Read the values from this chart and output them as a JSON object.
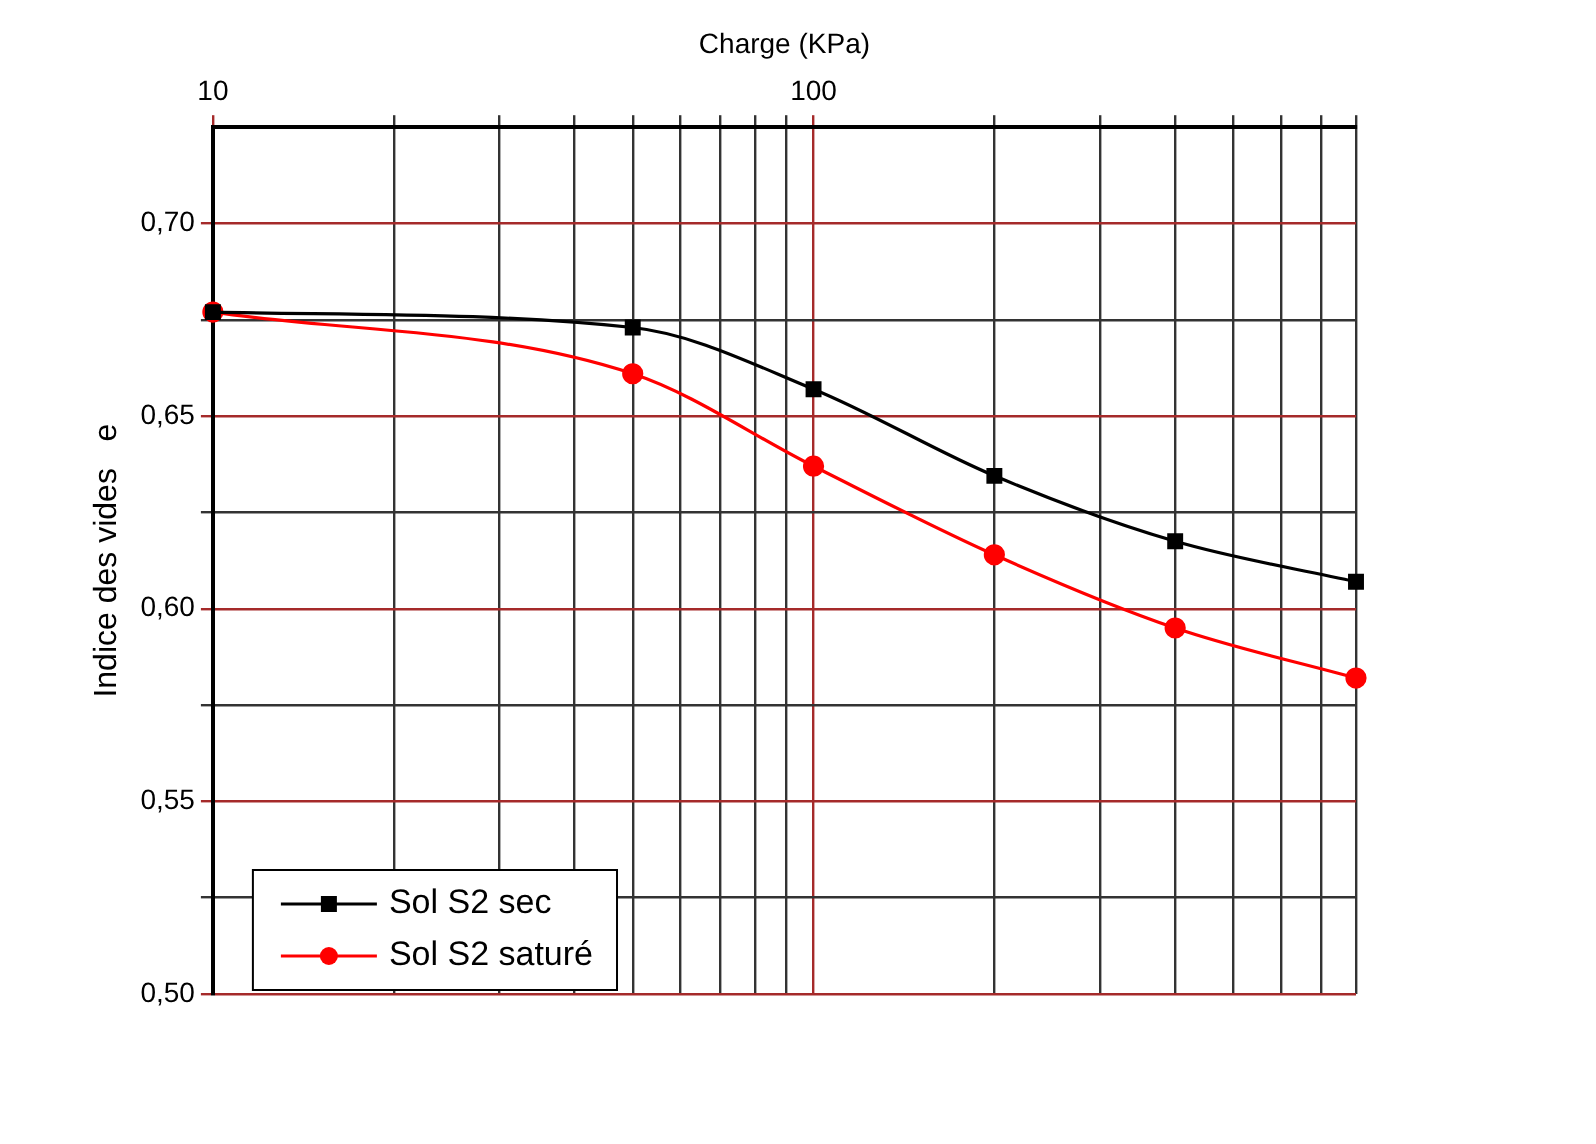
{
  "chart_data": {
    "type": "line",
    "xlabel": "Charge (KPa)",
    "ylabel": "Indice des vides   e",
    "log": "x",
    "x": [
      10,
      50,
      100,
      200,
      400,
      800
    ],
    "xlim": [
      10,
      800
    ],
    "xticks": [
      10,
      {
        "value": 20,
        "label": null
      },
      {
        "value": 30,
        "label": null
      },
      {
        "value": 40,
        "label": null
      },
      {
        "value": 50,
        "label": null
      },
      {
        "value": 60,
        "label": null
      },
      {
        "value": 70,
        "label": null
      },
      {
        "value": 80,
        "label": null
      },
      {
        "value": 90,
        "label": null
      },
      100,
      {
        "value": 200,
        "label": null
      },
      {
        "value": 300,
        "label": null
      },
      {
        "value": 400,
        "label": null
      },
      {
        "value": 500,
        "label": null
      },
      {
        "value": 600,
        "label": null
      },
      {
        "value": 700,
        "label": null
      },
      {
        "value": 800,
        "label": null
      }
    ],
    "ylim": [
      0.5,
      0.725
    ],
    "yticks": [
      {
        "value": 0.5,
        "label": "0,50"
      },
      {
        "value": 0.525,
        "label": null
      },
      {
        "value": 0.55,
        "label": "0,55"
      },
      {
        "value": 0.575,
        "label": null
      },
      {
        "value": 0.6,
        "label": "0,60"
      },
      {
        "value": 0.625,
        "label": null
      },
      {
        "value": 0.65,
        "label": "0,65"
      },
      {
        "value": 0.675,
        "label": null
      },
      {
        "value": 0.7,
        "label": "0,70"
      }
    ],
    "grid": true,
    "legend": "bottom left",
    "series": [
      {
        "name": "Sol S2 sec",
        "color": "#000000",
        "marker": "square",
        "values": [
          0.677,
          0.673,
          0.657,
          0.6345,
          0.6175,
          0.607
        ]
      },
      {
        "name": "Sol S2 saturé",
        "color": "#ff0000",
        "marker": "circle",
        "values": [
          0.677,
          0.661,
          0.637,
          0.614,
          0.595,
          0.582
        ]
      }
    ]
  }
}
